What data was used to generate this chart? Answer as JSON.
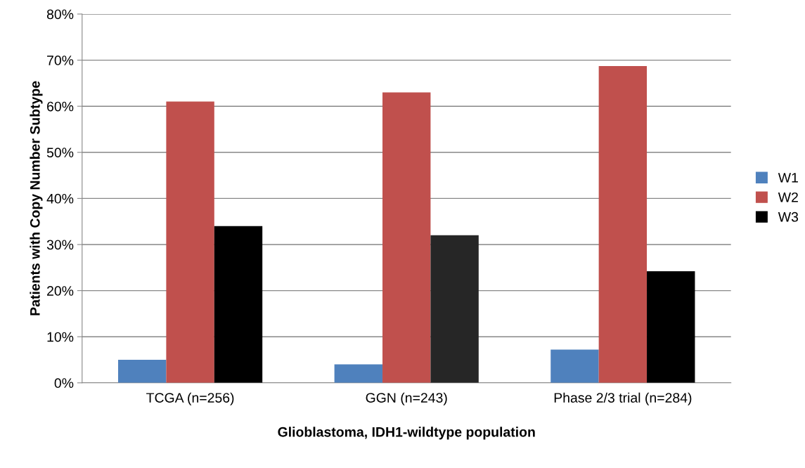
{
  "chart_data": {
    "type": "bar",
    "xlabel": "Glioblastoma, IDH1-wildtype population",
    "ylabel": "Patients with Copy Number Subtype",
    "categories": [
      "TCGA (n=256)",
      "GGN (n=243)",
      "Phase 2/3 trial (n=284)"
    ],
    "series": [
      {
        "name": "W1",
        "color": "#4f81bd",
        "values": [
          5,
          4,
          7.2
        ]
      },
      {
        "name": "W2",
        "color": "#c0504d",
        "values": [
          61,
          63,
          68.7
        ]
      },
      {
        "name": "W3",
        "color": "#000000",
        "colors": [
          "#000000",
          "#262626",
          "#000000"
        ],
        "values": [
          34,
          32,
          24.2
        ]
      }
    ],
    "ylim": [
      0,
      80
    ],
    "yticks": [
      {
        "value": 0,
        "label": "0%"
      },
      {
        "value": 10,
        "label": "10%"
      },
      {
        "value": 20,
        "label": "20%"
      },
      {
        "value": 30,
        "label": "30%"
      },
      {
        "value": 40,
        "label": "40%"
      },
      {
        "value": 50,
        "label": "50%"
      },
      {
        "value": 60,
        "label": "60%"
      },
      {
        "value": 70,
        "label": "70%"
      },
      {
        "value": 80,
        "label": "80%"
      }
    ],
    "grid": "y",
    "legend": "right"
  }
}
